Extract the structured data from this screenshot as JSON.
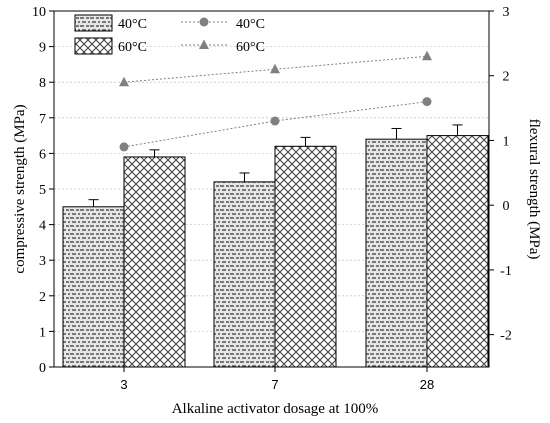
{
  "chart_data": {
    "type": "bar",
    "xlabel": "Alkaline activator dosage at 100%",
    "ylabel": "compressive strength (MPa)",
    "ylabel_right": "flexural strength (MPa)",
    "categories": [
      "3",
      "7",
      "28"
    ],
    "ylim": [
      0,
      10
    ],
    "yticks": [
      "0",
      "1",
      "2",
      "3",
      "4",
      "5",
      "6",
      "7",
      "8",
      "9",
      "10"
    ],
    "ylim_right": [
      -2.5,
      3
    ],
    "yticks_right": [
      "-2",
      "-1",
      "0",
      "1",
      "2",
      "3"
    ],
    "grid": true,
    "legend_position": "top-left",
    "bar_series": [
      {
        "name": "40°C",
        "values": [
          4.5,
          5.2,
          6.4
        ],
        "errors": [
          0.2,
          0.25,
          0.3
        ],
        "pattern": "dashes"
      },
      {
        "name": "60°C",
        "values": [
          5.9,
          6.2,
          6.5
        ],
        "errors": [
          0.2,
          0.25,
          0.3
        ],
        "pattern": "crosshatch"
      }
    ],
    "line_series": [
      {
        "name": "40°C",
        "axis": "right",
        "marker": "circle",
        "values": [
          0.9,
          1.3,
          1.6
        ],
        "color": "#808080"
      },
      {
        "name": "60°C",
        "axis": "right",
        "marker": "triangle",
        "values": [
          1.9,
          2.1,
          2.3
        ],
        "color": "#808080"
      }
    ]
  }
}
